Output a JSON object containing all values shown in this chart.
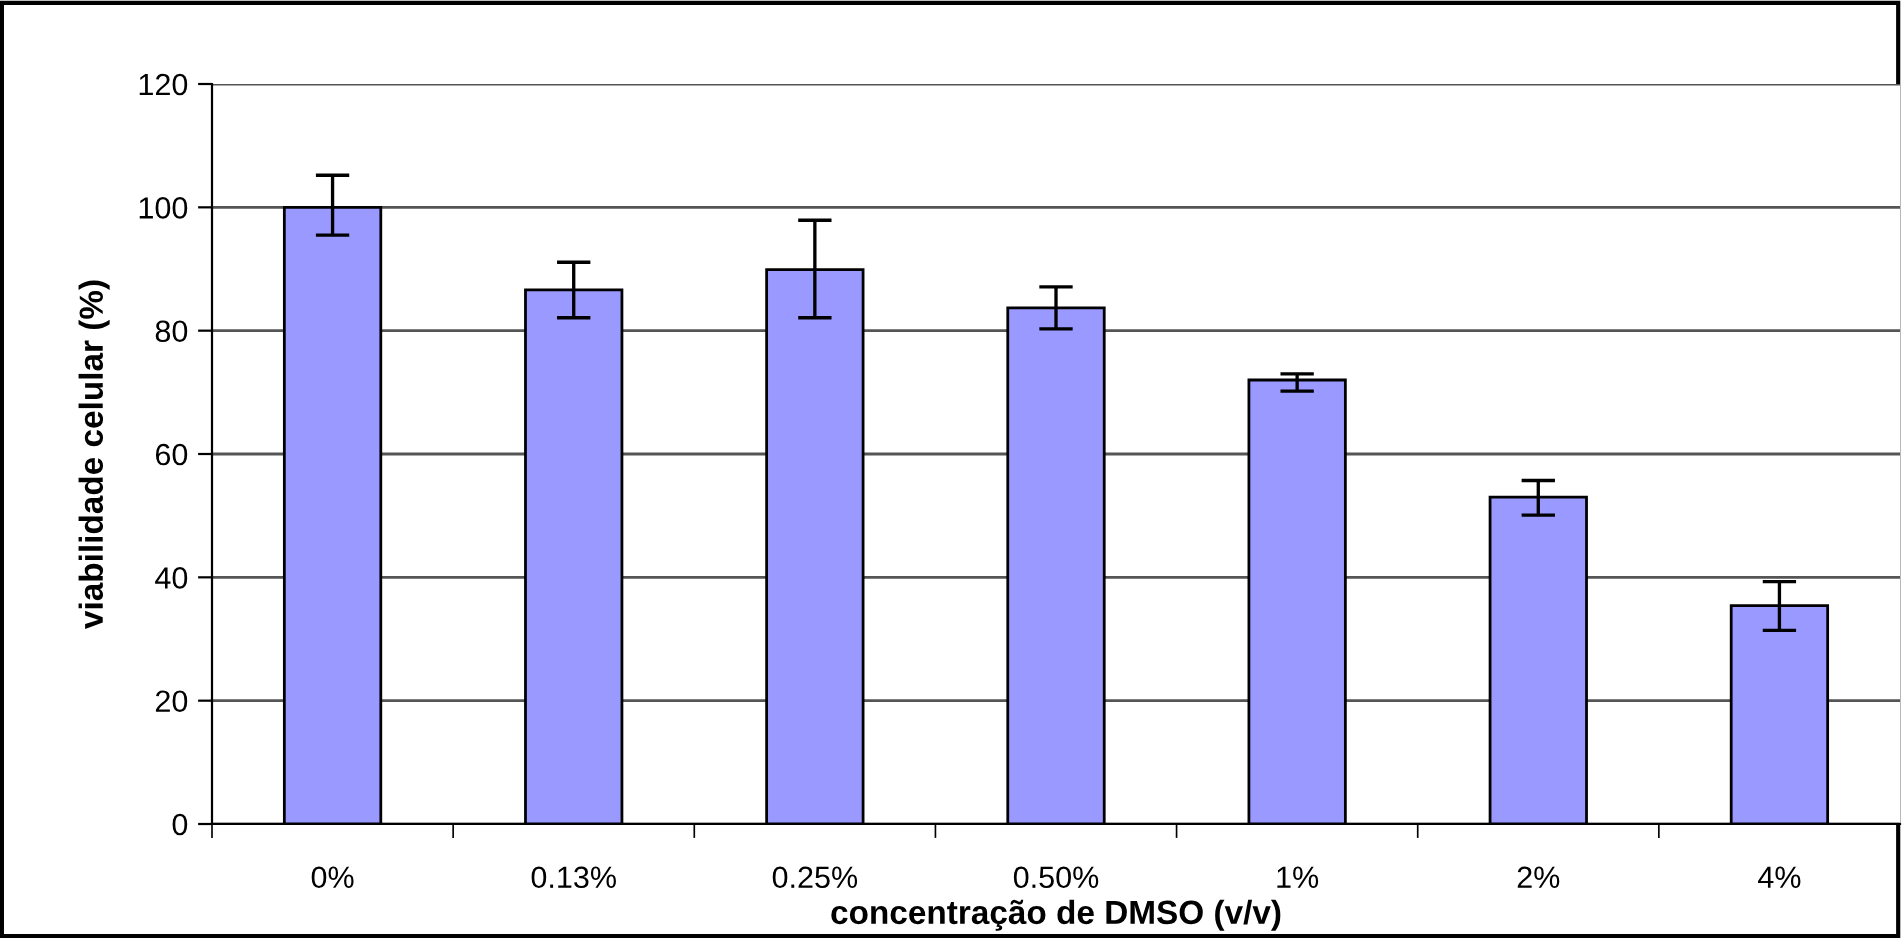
{
  "chart_data": {
    "type": "bar",
    "xlabel": "concentração de DMSO (v/v)",
    "ylabel": "viabilidade celular (%)",
    "categories": [
      "0%",
      "0.13%",
      "0.25%",
      "0.50%",
      "1%",
      "2%",
      "4%"
    ],
    "series": [
      {
        "color": "#9999ff",
        "values": [
          100,
          86.6,
          89.9,
          83.7,
          72.0,
          53.0,
          35.4
        ],
        "errors": [
          [
            95.5,
            105.2
          ],
          [
            82.1,
            91.1
          ],
          [
            82.1,
            97.9
          ],
          [
            80.3,
            87.1
          ],
          [
            70.2,
            73.0
          ],
          [
            50.1,
            55.7
          ],
          [
            31.4,
            39.3
          ]
        ]
      }
    ],
    "ylim": [
      0,
      120
    ],
    "yticks": [
      0,
      20,
      40,
      60,
      80,
      100,
      120
    ],
    "grid": "y",
    "legend": false
  }
}
